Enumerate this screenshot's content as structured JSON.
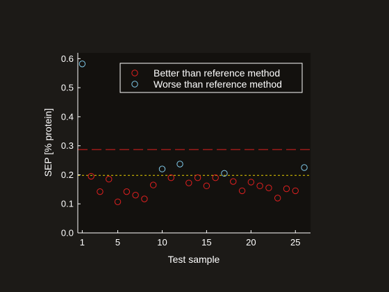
{
  "chart_data": {
    "type": "scatter",
    "title": "",
    "xlabel": "Test sample",
    "ylabel": "SEP [% protein]",
    "xlim": [
      0.5,
      26.7
    ],
    "ylim": [
      0,
      0.62
    ],
    "x_ticks": [
      1,
      5,
      10,
      15,
      20,
      25
    ],
    "y_ticks": [
      0,
      0.1,
      0.2,
      0.3,
      0.4,
      0.5,
      0.6
    ],
    "y_tick_labels": [
      "0.0",
      "0.1",
      "0.2",
      "0.3",
      "0.4",
      "0.5",
      "0.6"
    ],
    "grid": false,
    "legend_position": "top-right",
    "series": [
      {
        "name": "Better than reference method",
        "color": "#e02020",
        "marker": "circle",
        "x": [
          2,
          3,
          4,
          5,
          6,
          7,
          8,
          9,
          11,
          13,
          14,
          15,
          16,
          18,
          19,
          20,
          21,
          22,
          23,
          24,
          25
        ],
        "y": [
          0.195,
          0.142,
          0.185,
          0.107,
          0.142,
          0.13,
          0.117,
          0.165,
          0.19,
          0.172,
          0.19,
          0.162,
          0.19,
          0.177,
          0.145,
          0.175,
          0.162,
          0.155,
          0.12,
          0.152,
          0.145
        ]
      },
      {
        "name": "Worse than reference method",
        "color": "#7fc8e8",
        "marker": "circle",
        "x": [
          1,
          10,
          12,
          17,
          26
        ],
        "y": [
          0.582,
          0.22,
          0.237,
          0.205,
          0.225
        ]
      }
    ],
    "reference_lines": [
      {
        "y": 0.287,
        "color": "#e02020",
        "style": "dashed"
      },
      {
        "y": 0.198,
        "color": "#e8d000",
        "style": "dotted"
      }
    ]
  }
}
